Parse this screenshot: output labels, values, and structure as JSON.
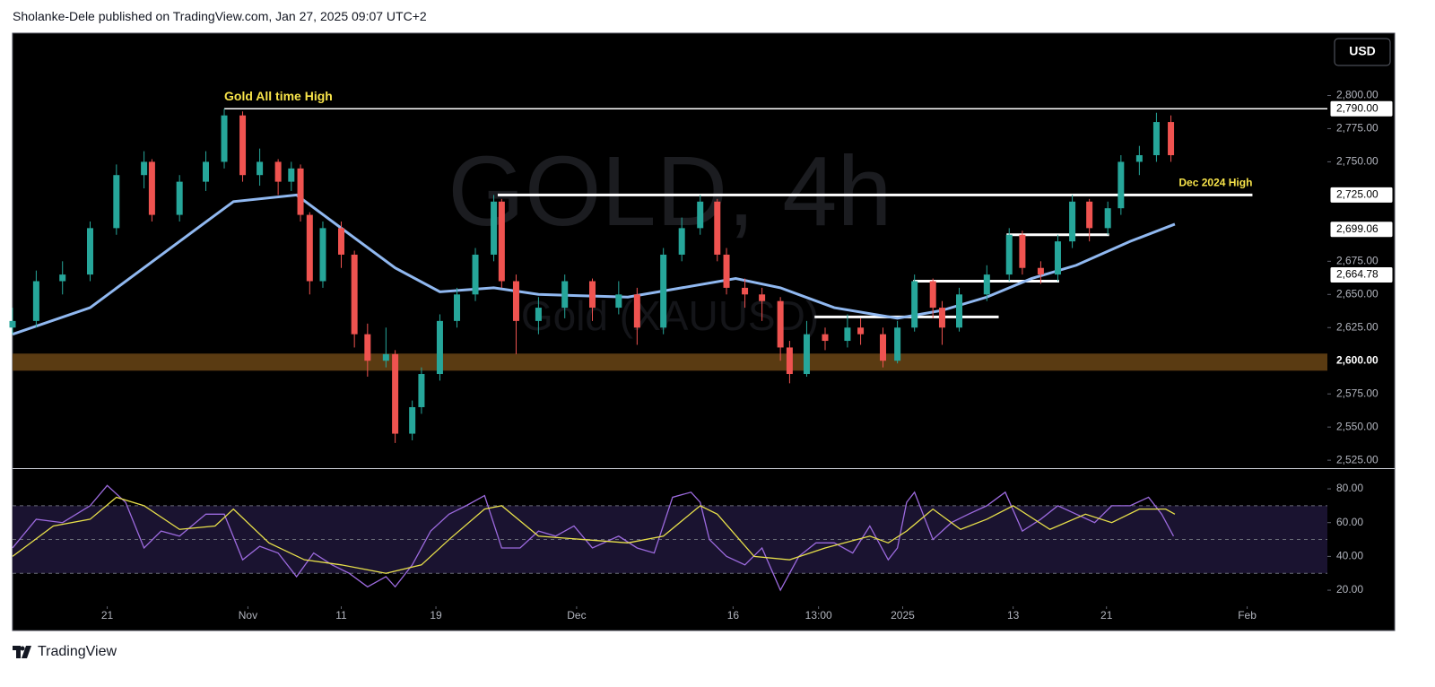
{
  "header": {
    "text": "Sholanke-Dele published on TradingView.com, Jan 27, 2025 09:07 UTC+2"
  },
  "currency": "USD",
  "footer": {
    "logo_text": "TradingView"
  },
  "chart_data": [
    {
      "type": "candlestick",
      "watermark_title": "GOLD, 4h",
      "watermark_subtitle": "Gold (XAUUSD)",
      "up_color": "#26a69a",
      "down_color": "#ef5350",
      "x": [
        0,
        1.8,
        3.8,
        5.9,
        7.9,
        10.0,
        10.6,
        12.7,
        14.7,
        16.1,
        17.5,
        18.8,
        20.2,
        21.2,
        21.9,
        22.6,
        23.6,
        25.0,
        26.0,
        27.0,
        28.4,
        29.1,
        30.4,
        31.1,
        32.5,
        33.8,
        35.2,
        36.6,
        37.2,
        38.3,
        40.0,
        42.0,
        44.1,
        46.1,
        47.5,
        49.5,
        50.9,
        52.3,
        53.6,
        54.3,
        55.7,
        57.0,
        58.4,
        59.1,
        60.4,
        61.8,
        63.5,
        64.5,
        66.2,
        67.3,
        68.6,
        70.0,
        70.7,
        72.0,
        74.1,
        75.8,
        76.8,
        78.2,
        79.5,
        80.6,
        81.9,
        83.3,
        84.3,
        85.7,
        87.0,
        88.1
      ],
      "open": [
        2625,
        2630,
        2660,
        2665,
        2700,
        2740,
        2750,
        2710,
        2735,
        2750,
        2785,
        2740,
        2750,
        2735,
        2745,
        2710,
        2660,
        2700,
        2680,
        2620,
        2600,
        2605,
        2545,
        2565,
        2590,
        2630,
        2650,
        2680,
        2720,
        2660,
        2630,
        2640,
        2660,
        2640,
        2650,
        2625,
        2680,
        2700,
        2720,
        2680,
        2655,
        2650,
        2645,
        2610,
        2590,
        2620,
        2615,
        2625,
        2620,
        2600,
        2625,
        2660,
        2640,
        2625,
        2650,
        2665,
        2695,
        2670,
        2665,
        2690,
        2720,
        2700,
        2715,
        2750,
        2755,
        2780
      ],
      "high": [
        2640,
        2668,
        2675,
        2705,
        2748,
        2758,
        2752,
        2740,
        2758,
        2790,
        2788,
        2760,
        2752,
        2750,
        2748,
        2712,
        2705,
        2705,
        2683,
        2628,
        2625,
        2608,
        2570,
        2595,
        2635,
        2655,
        2685,
        2725,
        2722,
        2665,
        2648,
        2665,
        2662,
        2660,
        2655,
        2685,
        2708,
        2725,
        2722,
        2685,
        2662,
        2655,
        2648,
        2615,
        2630,
        2625,
        2635,
        2632,
        2625,
        2630,
        2665,
        2662,
        2645,
        2655,
        2672,
        2700,
        2698,
        2675,
        2695,
        2725,
        2722,
        2720,
        2755,
        2762,
        2787,
        2785
      ],
      "low": [
        2620,
        2625,
        2650,
        2660,
        2695,
        2730,
        2705,
        2705,
        2728,
        2745,
        2735,
        2732,
        2725,
        2728,
        2705,
        2650,
        2655,
        2670,
        2610,
        2588,
        2595,
        2538,
        2540,
        2560,
        2585,
        2625,
        2645,
        2675,
        2655,
        2605,
        2620,
        2632,
        2630,
        2635,
        2612,
        2620,
        2675,
        2695,
        2675,
        2650,
        2640,
        2630,
        2600,
        2583,
        2588,
        2608,
        2610,
        2612,
        2595,
        2598,
        2622,
        2632,
        2612,
        2622,
        2645,
        2660,
        2665,
        2658,
        2660,
        2685,
        2690,
        2695,
        2710,
        2740,
        2750,
        2750
      ],
      "close": [
        2630,
        2660,
        2665,
        2700,
        2740,
        2750,
        2710,
        2735,
        2750,
        2785,
        2740,
        2750,
        2735,
        2745,
        2710,
        2660,
        2700,
        2680,
        2620,
        2600,
        2605,
        2545,
        2565,
        2590,
        2630,
        2650,
        2680,
        2720,
        2660,
        2630,
        2640,
        2660,
        2640,
        2650,
        2625,
        2680,
        2700,
        2720,
        2680,
        2655,
        2650,
        2645,
        2610,
        2590,
        2620,
        2615,
        2625,
        2620,
        2600,
        2625,
        2660,
        2640,
        2625,
        2650,
        2665,
        2695,
        2670,
        2665,
        2690,
        2720,
        2700,
        2715,
        2750,
        2755,
        2780,
        2755
      ],
      "ma": {
        "color": "#90b8f0",
        "x": [
          0,
          5.9,
          12.7,
          16.8,
          21.6,
          25.0,
          29.1,
          32.5,
          36.6,
          40.0,
          46.8,
          50.9,
          55.0,
          58.4,
          62.5,
          67.3,
          70.7,
          74.1,
          77.5,
          80.9,
          85.0,
          88.4
        ],
        "values": [
          2620,
          2640,
          2690,
          2720,
          2725,
          2700,
          2670,
          2652,
          2655,
          2650,
          2648,
          2655,
          2662,
          2655,
          2640,
          2632,
          2638,
          2648,
          2662,
          2672,
          2690,
          2703
        ]
      },
      "zone": {
        "from": 2592.5,
        "to": 2605.4,
        "color": "#5a3b12"
      },
      "levels": [
        {
          "value": 2790,
          "x": [
            16.1,
            100
          ]
        },
        {
          "value": 2725,
          "x": [
            36.9,
            94.3
          ]
        },
        {
          "value": 2633,
          "x": [
            61.0,
            75.0
          ]
        },
        {
          "value": 2660,
          "x": [
            68.5,
            79.6
          ]
        },
        {
          "value": 2695,
          "x": [
            75.6,
            83.4
          ]
        }
      ],
      "annotations": [
        {
          "text": "Gold All time High",
          "x": 16.1,
          "y": 2790
        },
        {
          "text": "Dec 2024 High",
          "x": 94.3,
          "y": 2725
        }
      ],
      "xlim": [
        0,
        100
      ],
      "ylim": [
        2519,
        2847
      ],
      "yticks": [
        {
          "value": 2525,
          "label": "2,525.00"
        },
        {
          "value": 2550,
          "label": "2,550.00"
        },
        {
          "value": 2575,
          "label": "2,575.00"
        },
        {
          "value": 2625,
          "label": "2,625.00"
        },
        {
          "value": 2650,
          "label": "2,650.00"
        },
        {
          "value": 2675,
          "label": "2,675.00"
        },
        {
          "value": 2750,
          "label": "2,750.00"
        },
        {
          "value": 2775,
          "label": "2,775.00"
        },
        {
          "value": 2800,
          "label": "2,800.00"
        }
      ],
      "price_labels": [
        {
          "value": 2790,
          "label": "2,790.00",
          "boxed": true
        },
        {
          "value": 2725,
          "label": "2,725.00",
          "boxed": true
        },
        {
          "value": 2699.06,
          "label": "2,699.06",
          "boxed": true
        },
        {
          "value": 2664.78,
          "label": "2,664.78",
          "boxed": true
        },
        {
          "value": 2600,
          "label": "2,600.00",
          "boxed": false
        }
      ]
    },
    {
      "type": "line",
      "series": [
        {
          "color": "#9c6ade",
          "x": [
            0,
            1.8,
            3.8,
            5.9,
            7.2,
            8.6,
            10.0,
            11.3,
            12.7,
            14.7,
            16.1,
            17.5,
            18.8,
            20.2,
            21.6,
            22.9,
            24.3,
            25.6,
            27.0,
            28.4,
            29.1,
            30.4,
            31.8,
            33.2,
            34.5,
            35.9,
            37.2,
            38.6,
            40.0,
            41.3,
            42.7,
            44.1,
            46.1,
            47.5,
            48.8,
            50.2,
            51.6,
            52.3,
            53.0,
            54.3,
            55.7,
            57.0,
            58.4,
            59.8,
            61.1,
            62.5,
            63.9,
            65.2,
            66.6,
            67.3,
            68.0,
            68.6,
            70.0,
            71.4,
            72.7,
            74.1,
            75.5,
            76.8,
            78.2,
            79.5,
            80.9,
            82.3,
            83.6,
            85.0,
            86.4,
            87.4,
            88.3
          ],
          "values": [
            45,
            62,
            60,
            70,
            82,
            72,
            45,
            55,
            52,
            65,
            65,
            38,
            46,
            42,
            28,
            42,
            35,
            30,
            22,
            28,
            22,
            35,
            55,
            65,
            70,
            76,
            45,
            45,
            55,
            52,
            58,
            45,
            52,
            45,
            42,
            75,
            78,
            72,
            50,
            40,
            35,
            45,
            20,
            40,
            48,
            48,
            42,
            58,
            38,
            45,
            72,
            78,
            50,
            60,
            65,
            70,
            78,
            55,
            62,
            70,
            65,
            60,
            70,
            70,
            75,
            65,
            52
          ]
        },
        {
          "color": "#e8e04a",
          "x": [
            0,
            3.1,
            5.9,
            7.9,
            10.0,
            12.7,
            15.4,
            16.8,
            19.5,
            22.2,
            25.0,
            28.4,
            31.1,
            33.2,
            35.9,
            37.2,
            40.0,
            43.4,
            46.8,
            49.5,
            52.3,
            53.6,
            56.4,
            59.1,
            61.8,
            65.2,
            66.6,
            68.0,
            70.0,
            72.1,
            74.1,
            76.1,
            78.9,
            81.6,
            83.6,
            85.7,
            87.7,
            88.4
          ],
          "values": [
            40,
            58,
            62,
            75,
            70,
            56,
            58,
            68,
            48,
            38,
            35,
            30,
            35,
            50,
            68,
            70,
            52,
            50,
            48,
            52,
            70,
            65,
            40,
            38,
            45,
            52,
            48,
            55,
            68,
            56,
            62,
            70,
            56,
            65,
            60,
            68,
            68,
            65
          ]
        }
      ],
      "bands": {
        "upper": 70,
        "lower": 30,
        "mid": 50,
        "color": "#1a1330"
      },
      "xlim": [
        0,
        100
      ],
      "ylim": [
        12.6,
        91.7
      ],
      "yticks": [
        {
          "value": 20,
          "label": "20.00"
        },
        {
          "value": 40,
          "label": "40.00"
        },
        {
          "value": 60,
          "label": "60.00"
        },
        {
          "value": 80,
          "label": "80.00"
        }
      ],
      "xticks": [
        {
          "value": 7.2,
          "label": "21"
        },
        {
          "value": 17.9,
          "label": "Nov"
        },
        {
          "value": 25.0,
          "label": "11"
        },
        {
          "value": 32.2,
          "label": "19"
        },
        {
          "value": 42.9,
          "label": "Dec"
        },
        {
          "value": 54.8,
          "label": "16"
        },
        {
          "value": 61.3,
          "label": "13:00"
        },
        {
          "value": 67.7,
          "label": "2025"
        },
        {
          "value": 76.1,
          "label": "13"
        },
        {
          "value": 83.2,
          "label": "21"
        },
        {
          "value": 93.9,
          "label": "Feb"
        }
      ]
    }
  ]
}
